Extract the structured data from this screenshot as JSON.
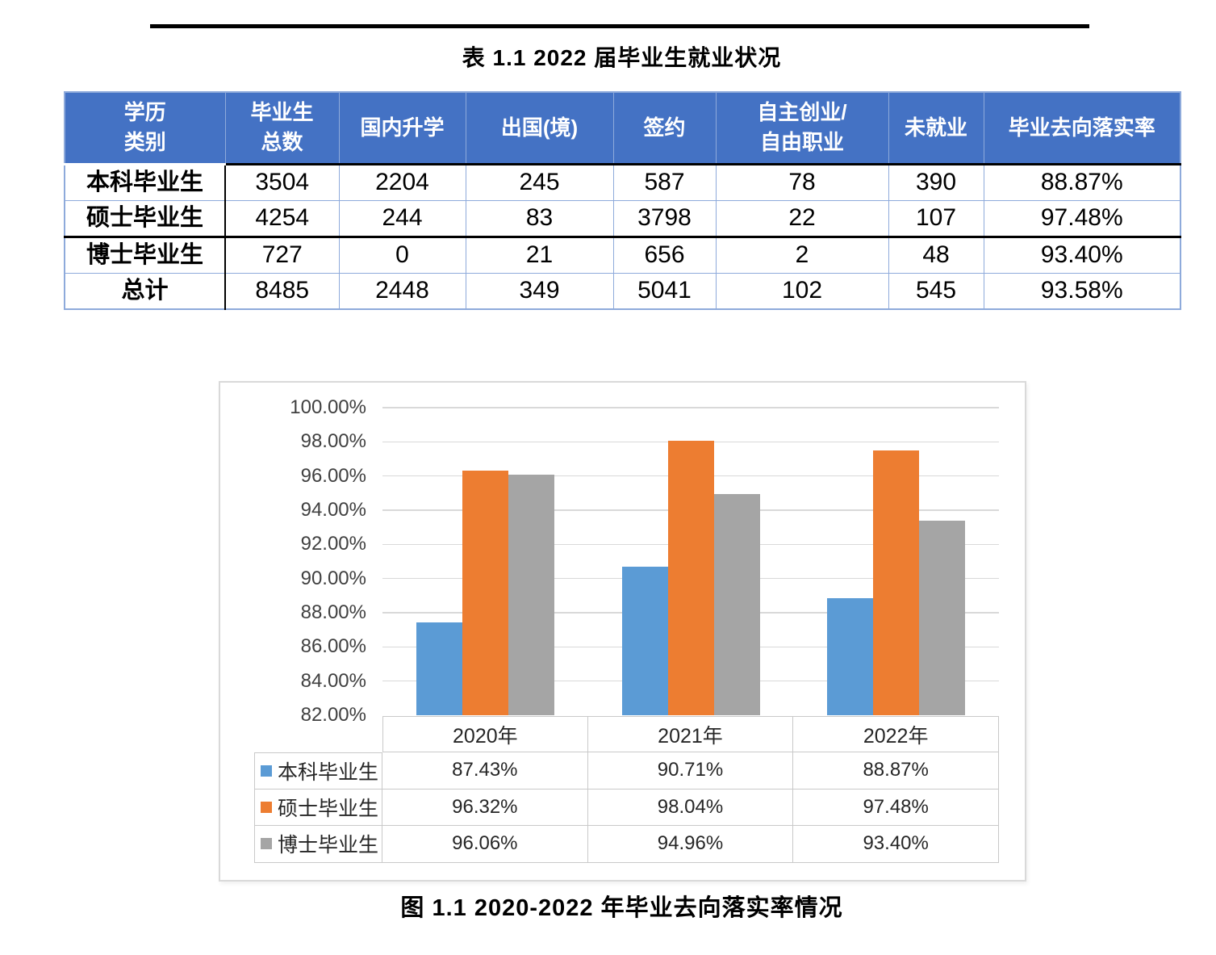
{
  "document": {
    "table_caption": "表 1.1  2022 届毕业生就业状况",
    "figure_caption": "图 1.1  2020-2022 年毕业去向落实率情况"
  },
  "table": {
    "header": [
      {
        "slug": "degree-type",
        "lines": [
          "学历",
          "类别"
        ]
      },
      {
        "slug": "total-graduates",
        "lines": [
          "毕业生",
          "总数"
        ]
      },
      {
        "slug": "domestic-further-study",
        "lines": [
          "国内升学"
        ]
      },
      {
        "slug": "study-abroad",
        "lines": [
          "出国(境)"
        ]
      },
      {
        "slug": "contract-signed",
        "lines": [
          "签约"
        ]
      },
      {
        "slug": "self-employed-freelance",
        "lines": [
          "自主创业/",
          "自由职业"
        ]
      },
      {
        "slug": "unemployed",
        "lines": [
          "未就业"
        ]
      },
      {
        "slug": "placement-rate",
        "lines": [
          "毕业去向落实率"
        ]
      }
    ],
    "rows": [
      {
        "slug": "undergraduate",
        "label": "本科毕业生",
        "values": [
          "3504",
          "2204",
          "245",
          "587",
          "78",
          "390",
          "88.87%"
        ]
      },
      {
        "slug": "master",
        "label": "硕士毕业生",
        "values": [
          "4254",
          "244",
          "83",
          "3798",
          "22",
          "107",
          "97.48%"
        ]
      },
      {
        "slug": "doctoral",
        "label": "博士毕业生",
        "values": [
          "727",
          "0",
          "21",
          "656",
          "2",
          "48",
          "93.40%"
        ]
      },
      {
        "slug": "total",
        "label": "总计",
        "values": [
          "8485",
          "2448",
          "349",
          "5041",
          "102",
          "545",
          "93.58%"
        ]
      }
    ]
  },
  "chart_data": {
    "type": "bar",
    "title": "",
    "xlabel": "",
    "ylabel": "",
    "categories": [
      "2020年",
      "2021年",
      "2022年"
    ],
    "series": [
      {
        "slug": "undergraduate",
        "name": "本科毕业生",
        "color": "#5B9BD5",
        "values": [
          87.43,
          90.71,
          88.87
        ],
        "display": [
          "87.43%",
          "90.71%",
          "88.87%"
        ]
      },
      {
        "slug": "master",
        "name": "硕士毕业生",
        "color": "#ED7D31",
        "values": [
          96.32,
          98.04,
          97.48
        ],
        "display": [
          "96.32%",
          "98.04%",
          "97.48%"
        ]
      },
      {
        "slug": "doctoral",
        "name": "博士毕业生",
        "color": "#A5A5A5",
        "values": [
          96.06,
          94.96,
          93.4
        ],
        "display": [
          "96.06%",
          "94.96%",
          "93.40%"
        ]
      }
    ],
    "ylim": [
      82,
      100
    ],
    "ytick_step": 2,
    "ytick_labels": [
      "100.00%",
      "98.00%",
      "96.00%",
      "94.00%",
      "92.00%",
      "90.00%",
      "88.00%",
      "86.00%",
      "84.00%",
      "82.00%"
    ],
    "grid": true,
    "legend_position": "data-table-left",
    "data_table_shown": true
  },
  "colors": {
    "table_header_fill": "#4472C4",
    "table_border": "#8EAADB",
    "chart_gridline": "#D9D9D9",
    "chart_table_border": "#C9C9C9"
  }
}
